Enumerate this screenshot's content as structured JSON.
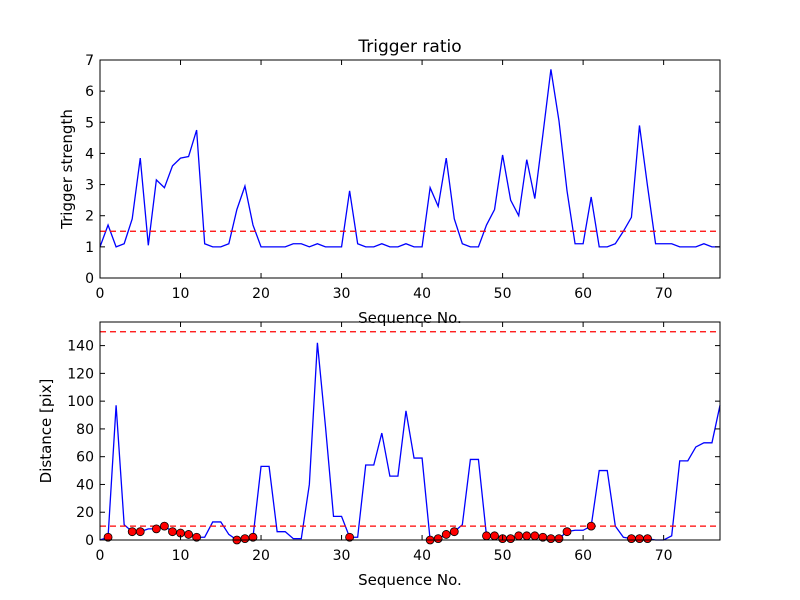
{
  "chart_data": [
    {
      "type": "line",
      "title": "Trigger ratio",
      "xlabel": "Sequence No.",
      "ylabel": "Trigger strength",
      "xlim": [
        0,
        77
      ],
      "ylim": [
        0,
        7
      ],
      "xticks": [
        "0",
        "10",
        "20",
        "30",
        "40",
        "50",
        "60",
        "70"
      ],
      "yticks": [
        "0",
        "1",
        "2",
        "3",
        "4",
        "5",
        "6",
        "7"
      ],
      "grid": false,
      "line_color": "#0000ff",
      "threshold": {
        "y": 1.5,
        "color": "#ff0000",
        "style": "dashed"
      },
      "series": [
        {
          "x": [
            0,
            1,
            2,
            3,
            4,
            5,
            6,
            7,
            8,
            9,
            10,
            11,
            12,
            13,
            14,
            15,
            16,
            17,
            18,
            19,
            20,
            21,
            22,
            23,
            24,
            25,
            26,
            27,
            28,
            29,
            30,
            31,
            32,
            33,
            34,
            35,
            36,
            37,
            38,
            39,
            40,
            41,
            42,
            43,
            44,
            45,
            46,
            47,
            48,
            49,
            50,
            51,
            52,
            53,
            54,
            55,
            56,
            57,
            58,
            59,
            60,
            61,
            62,
            63,
            64,
            65,
            66,
            67,
            68,
            69,
            70,
            71,
            72,
            73,
            74,
            75,
            76,
            77
          ],
          "y": [
            1.0,
            1.7,
            1.0,
            1.1,
            1.9,
            3.85,
            1.05,
            3.15,
            2.9,
            3.6,
            3.85,
            3.9,
            4.75,
            1.1,
            1.0,
            1.0,
            1.1,
            2.2,
            2.95,
            1.7,
            1.0,
            1.0,
            1.0,
            1.0,
            1.1,
            1.1,
            1.0,
            1.1,
            1.0,
            1.0,
            1.0,
            2.8,
            1.1,
            1.0,
            1.0,
            1.1,
            1.0,
            1.0,
            1.1,
            1.0,
            1.0,
            2.9,
            2.3,
            3.85,
            1.9,
            1.1,
            1.0,
            1.0,
            1.7,
            2.2,
            3.95,
            2.5,
            2.0,
            3.8,
            2.55,
            4.6,
            6.7,
            5.05,
            2.8,
            1.1,
            1.1,
            2.6,
            1.0,
            1.0,
            1.1,
            1.5,
            1.95,
            4.9,
            2.95,
            1.1,
            1.1,
            1.1,
            1.0,
            1.0,
            1.0,
            1.1,
            1.0,
            1.0
          ]
        }
      ]
    },
    {
      "type": "line",
      "title": "",
      "xlabel": "Sequence No.",
      "ylabel": "Distance [pix]",
      "xlim": [
        0,
        77
      ],
      "ylim": [
        0,
        157
      ],
      "xticks": [
        "0",
        "10",
        "20",
        "30",
        "40",
        "50",
        "60",
        "70"
      ],
      "yticks": [
        "0",
        "20",
        "40",
        "60",
        "80",
        "100",
        "120",
        "140"
      ],
      "grid": false,
      "line_color": "#0000ff",
      "marker_color": "#ff0000",
      "thresholds": [
        {
          "y": 150,
          "color": "#ff0000",
          "style": "dashed"
        },
        {
          "y": 10,
          "color": "#ff0000",
          "style": "dashed"
        }
      ],
      "series": [
        {
          "x": [
            0,
            1,
            2,
            3,
            4,
            5,
            6,
            7,
            8,
            9,
            10,
            11,
            12,
            13,
            14,
            15,
            16,
            17,
            18,
            19,
            20,
            21,
            22,
            23,
            24,
            25,
            26,
            27,
            28,
            29,
            30,
            31,
            32,
            33,
            34,
            35,
            36,
            37,
            38,
            39,
            40,
            41,
            42,
            43,
            44,
            45,
            46,
            47,
            48,
            49,
            50,
            51,
            52,
            53,
            54,
            55,
            56,
            57,
            58,
            59,
            60,
            61,
            62,
            63,
            64,
            65,
            66,
            67,
            68,
            69,
            70,
            71,
            72,
            73,
            74,
            75,
            76,
            77
          ],
          "y": [
            0,
            2,
            97,
            11,
            6,
            6,
            8,
            8,
            10,
            6,
            5,
            4,
            2,
            2,
            13,
            13,
            4,
            0,
            1,
            2,
            53,
            53,
            6,
            6,
            1,
            1,
            40,
            142,
            82,
            17,
            17,
            2,
            2,
            54,
            54,
            77,
            46,
            46,
            93,
            59,
            59,
            0,
            1,
            4,
            6,
            11,
            58,
            58,
            3,
            3,
            1,
            1,
            3,
            3,
            3,
            2,
            1,
            1,
            6,
            7,
            7,
            10,
            50,
            50,
            10,
            2,
            1,
            1,
            1,
            0,
            0,
            3,
            57,
            57,
            67,
            70,
            70,
            97
          ]
        }
      ],
      "markers": {
        "x": [
          1,
          4,
          5,
          7,
          8,
          9,
          10,
          11,
          12,
          17,
          18,
          19,
          31,
          41,
          42,
          43,
          44,
          48,
          49,
          50,
          51,
          52,
          53,
          54,
          55,
          56,
          57,
          58,
          61,
          66,
          67,
          68
        ],
        "y": [
          2,
          6,
          6,
          8,
          10,
          6,
          5,
          4,
          2,
          0,
          1,
          2,
          2,
          0,
          1,
          4,
          6,
          3,
          3,
          1,
          1,
          3,
          3,
          3,
          2,
          1,
          1,
          6,
          10,
          1,
          1,
          1
        ]
      }
    }
  ]
}
